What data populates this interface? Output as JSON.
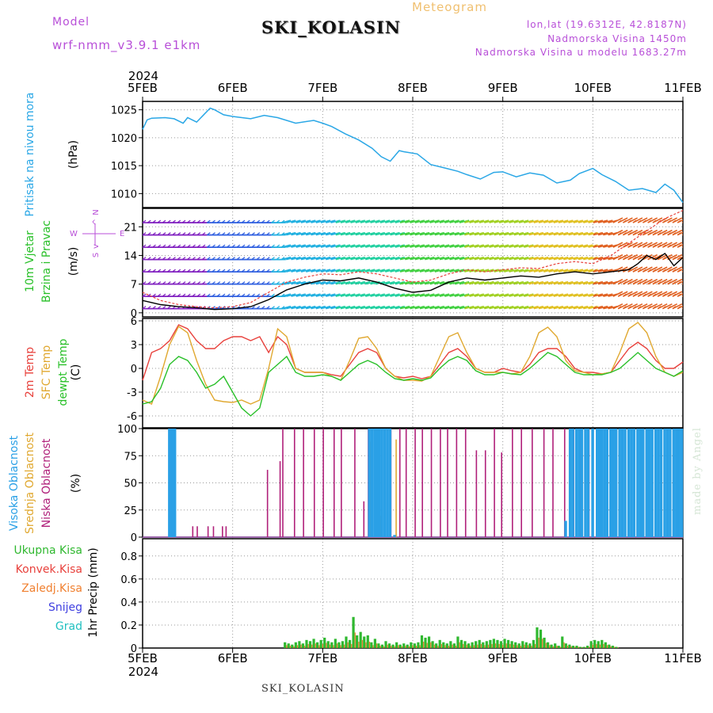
{
  "header": {
    "model_label": "Model",
    "model_name": "wrf-nmm_v3.9.1 e1km",
    "station": "SKI_KOLASIN",
    "chart_kind": "Meteogram",
    "lonlat": "lon,lat (19.6312E, 42.8187N)",
    "elevation": "Nadmorska Visina 1450m",
    "model_elevation": "Nadmorska Visina u modelu 1683.27m"
  },
  "footer": {
    "station": "SKI_KOLASIN",
    "credit": "made by Angel"
  },
  "colors": {
    "pressure": "#2aa7e6",
    "t2m": "#e8413c",
    "tsfc": "#e0a830",
    "dewpt": "#29c029",
    "wind_speed": "#000000",
    "gust": "#e8413c",
    "cloud_high": "#2aa0e6",
    "cloud_mid": "#e0a830",
    "cloud_low": "#b0207a",
    "precip_total": "#2fb82f",
    "precip_conv": "#e8413c",
    "precip_frz": "#f08030",
    "precip_snow": "#4040e0",
    "precip_hail": "#20c0c0"
  },
  "chart_data": [
    {
      "id": "pressure",
      "type": "line",
      "title": "",
      "top_year": "2024",
      "bottom_year": "2024",
      "x_ticks": [
        "5FEB",
        "6FEB",
        "7FEB",
        "8FEB",
        "9FEB",
        "10FEB",
        "11FEB"
      ],
      "ylabel_lines": [
        "Pritisak na nivou mora",
        "(hPa)"
      ],
      "yticks": [
        1010,
        1015,
        1020,
        1025
      ],
      "ylim": [
        1007.5,
        1026.5
      ],
      "series": [
        {
          "color_key": "pressure",
          "x": [
            0,
            0.05,
            0.1,
            0.25,
            0.35,
            0.45,
            0.5,
            0.6,
            0.75,
            0.8,
            0.9,
            1.0,
            1.2,
            1.35,
            1.5,
            1.7,
            1.9,
            2.0,
            2.1,
            2.25,
            2.4,
            2.55,
            2.65,
            2.75,
            2.85,
            2.9,
            3.05,
            3.2,
            3.35,
            3.5,
            3.6,
            3.75,
            3.9,
            4.0,
            4.15,
            4.3,
            4.45,
            4.6,
            4.75,
            4.85,
            5.0,
            5.1,
            5.25,
            5.4,
            5.55,
            5.7,
            5.8,
            5.9,
            6.0
          ],
          "y": [
            1021.5,
            1023.2,
            1023.5,
            1023.6,
            1023.4,
            1022.6,
            1023.6,
            1022.8,
            1025.3,
            1025.0,
            1024.1,
            1023.8,
            1023.4,
            1024.0,
            1023.6,
            1022.6,
            1023.1,
            1022.6,
            1022.0,
            1020.7,
            1019.6,
            1018.1,
            1016.6,
            1015.8,
            1017.7,
            1017.5,
            1017.1,
            1015.2,
            1014.6,
            1014.0,
            1013.4,
            1012.6,
            1013.8,
            1013.9,
            1013.0,
            1013.7,
            1013.3,
            1011.9,
            1012.4,
            1013.6,
            1014.5,
            1013.4,
            1012.2,
            1010.6,
            1010.9,
            1010.2,
            1011.7,
            1010.6,
            1008.4
          ]
        }
      ]
    },
    {
      "id": "wind",
      "type": "line",
      "title": "",
      "ylabel_lines": [
        "10m Vjetar",
        "Brzina i Pravac",
        "(m/s)"
      ],
      "compass": {
        "n": "N",
        "w": "W",
        "e": "E",
        "s": "S",
        "arrow_up": "^",
        "arrow_down": "v"
      },
      "yticks": [
        0,
        7,
        14,
        21
      ],
      "ylim": [
        -1,
        25.5
      ],
      "series": [
        {
          "name": "wind speed",
          "color_key": "wind_speed",
          "x": [
            0,
            0.2,
            0.4,
            0.6,
            0.8,
            1.0,
            1.2,
            1.4,
            1.6,
            1.8,
            2.0,
            2.2,
            2.4,
            2.6,
            2.8,
            3.0,
            3.2,
            3.4,
            3.6,
            3.8,
            4.0,
            4.2,
            4.4,
            4.6,
            4.8,
            5.0,
            5.2,
            5.4,
            5.5,
            5.6,
            5.7,
            5.8,
            5.9,
            6.0
          ],
          "y": [
            3.0,
            2.0,
            1.5,
            1.2,
            0.8,
            1.0,
            1.5,
            3.2,
            5.6,
            7.0,
            8.0,
            7.8,
            8.5,
            7.5,
            6.0,
            5.0,
            5.5,
            7.5,
            8.5,
            8.0,
            8.5,
            9.0,
            8.7,
            9.5,
            10.0,
            9.5,
            10.0,
            10.5,
            12.0,
            14.0,
            13.0,
            14.5,
            11.5,
            13.5
          ]
        },
        {
          "name": "gust",
          "color_key": "gust",
          "x": [
            0,
            0.2,
            0.4,
            0.6,
            0.8,
            1.0,
            1.2,
            1.4,
            1.6,
            1.8,
            2.0,
            2.2,
            2.4,
            2.6,
            2.8,
            3.0,
            3.2,
            3.4,
            3.6,
            3.8,
            4.0,
            4.2,
            4.4,
            4.6,
            4.8,
            5.0,
            5.2,
            5.4,
            5.6,
            5.8,
            6.0
          ],
          "y": [
            5.0,
            3.0,
            2.0,
            1.5,
            1.2,
            1.5,
            2.5,
            5.0,
            7.5,
            8.7,
            9.5,
            9.3,
            10.0,
            9.5,
            8.5,
            7.5,
            8.0,
            9.5,
            10.5,
            10.0,
            10.5,
            11.0,
            10.8,
            12.0,
            12.5,
            12.0,
            14.0,
            17.0,
            20.0,
            23.0,
            25.0
          ]
        }
      ]
    },
    {
      "id": "temperature",
      "type": "line",
      "title": "",
      "ylabel_lines": [
        "2m Temp",
        "SFC Temp",
        "dewpt Temp",
        "(C)"
      ],
      "yticks": [
        -6,
        -3,
        0,
        3,
        6
      ],
      "ylim": [
        -7.5,
        6.3
      ],
      "series": [
        {
          "name": "2m Temp",
          "color_key": "t2m",
          "x": [
            0,
            0.1,
            0.2,
            0.3,
            0.4,
            0.5,
            0.6,
            0.7,
            0.8,
            0.9,
            1.0,
            1.1,
            1.2,
            1.3,
            1.4,
            1.5,
            1.6,
            1.7,
            1.8,
            1.9,
            2.0,
            2.1,
            2.2,
            2.3,
            2.4,
            2.5,
            2.6,
            2.7,
            2.8,
            2.9,
            3.0,
            3.1,
            3.2,
            3.3,
            3.4,
            3.5,
            3.6,
            3.7,
            3.8,
            3.9,
            4.0,
            4.1,
            4.2,
            4.3,
            4.4,
            4.5,
            4.6,
            4.7,
            4.8,
            4.9,
            5.0,
            5.1,
            5.2,
            5.3,
            5.4,
            5.5,
            5.6,
            5.7,
            5.8,
            5.9,
            6.0
          ],
          "y": [
            -1.5,
            2.0,
            2.5,
            3.5,
            5.5,
            5.0,
            3.5,
            2.5,
            2.5,
            3.5,
            4.0,
            4.0,
            3.5,
            4.0,
            2.0,
            4.0,
            3.0,
            0.0,
            -0.5,
            -0.5,
            -0.5,
            -0.8,
            -1.0,
            0.5,
            2.0,
            2.5,
            2.0,
            0.0,
            -1.0,
            -1.2,
            -1.0,
            -1.3,
            -1.0,
            0.5,
            2.0,
            2.5,
            1.5,
            0.0,
            -0.5,
            -0.5,
            0.0,
            -0.3,
            -0.5,
            0.5,
            2.0,
            2.5,
            2.5,
            1.5,
            0.0,
            -0.5,
            -0.5,
            -0.7,
            -0.5,
            1.0,
            2.5,
            3.3,
            2.5,
            1.0,
            0.0,
            0.0,
            0.8
          ]
        },
        {
          "name": "SFC Temp",
          "color_key": "tsfc",
          "x": [
            0,
            0.1,
            0.2,
            0.3,
            0.4,
            0.5,
            0.6,
            0.7,
            0.8,
            0.9,
            1.0,
            1.1,
            1.2,
            1.3,
            1.4,
            1.5,
            1.6,
            1.7,
            1.8,
            1.9,
            2.0,
            2.1,
            2.2,
            2.3,
            2.4,
            2.5,
            2.6,
            2.7,
            2.8,
            2.9,
            3.0,
            3.1,
            3.2,
            3.3,
            3.4,
            3.5,
            3.6,
            3.7,
            3.8,
            3.9,
            4.0,
            4.1,
            4.2,
            4.3,
            4.4,
            4.5,
            4.6,
            4.7,
            4.8,
            4.9,
            5.0,
            5.1,
            5.2,
            5.3,
            5.4,
            5.5,
            5.6,
            5.7,
            5.8,
            5.9,
            6.0
          ],
          "y": [
            -4.0,
            -4.5,
            -1.0,
            3.0,
            5.3,
            4.5,
            1.0,
            -2.0,
            -4.0,
            -4.2,
            -4.3,
            -4.0,
            -4.5,
            -4.0,
            0.0,
            5.0,
            4.0,
            0.0,
            -0.5,
            -0.5,
            -0.5,
            -1.0,
            -1.5,
            1.0,
            3.8,
            4.0,
            2.5,
            0.0,
            -1.0,
            -1.5,
            -1.5,
            -1.6,
            -1.0,
            1.5,
            4.0,
            4.5,
            2.0,
            0.0,
            -0.5,
            -0.5,
            -0.5,
            -0.7,
            -0.5,
            1.5,
            4.5,
            5.2,
            4.0,
            1.0,
            -0.3,
            -0.5,
            -0.8,
            -0.7,
            -0.5,
            2.0,
            5.0,
            5.8,
            4.5,
            1.5,
            -0.5,
            -1.0,
            -0.5
          ]
        },
        {
          "name": "dewpt Temp",
          "color_key": "dewpt",
          "x": [
            0,
            0.1,
            0.2,
            0.3,
            0.4,
            0.5,
            0.6,
            0.7,
            0.8,
            0.9,
            1.0,
            1.1,
            1.2,
            1.3,
            1.4,
            1.5,
            1.6,
            1.7,
            1.8,
            1.9,
            2.0,
            2.1,
            2.2,
            2.3,
            2.4,
            2.5,
            2.6,
            2.7,
            2.8,
            2.9,
            3.0,
            3.1,
            3.2,
            3.3,
            3.4,
            3.5,
            3.6,
            3.7,
            3.8,
            3.9,
            4.0,
            4.1,
            4.2,
            4.3,
            4.4,
            4.5,
            4.6,
            4.7,
            4.8,
            4.9,
            5.0,
            5.1,
            5.2,
            5.3,
            5.4,
            5.5,
            5.6,
            5.7,
            5.8,
            5.9,
            6.0
          ],
          "y": [
            -4.5,
            -4.2,
            -2.5,
            0.5,
            1.5,
            1.0,
            -0.5,
            -2.5,
            -2.0,
            -1.0,
            -3.0,
            -5.0,
            -6.0,
            -5.0,
            -0.5,
            0.5,
            1.5,
            -0.5,
            -1.0,
            -1.0,
            -0.8,
            -1.0,
            -1.5,
            -0.5,
            0.5,
            1.0,
            0.5,
            -0.5,
            -1.3,
            -1.5,
            -1.3,
            -1.5,
            -1.2,
            0.0,
            1.0,
            1.5,
            1.0,
            -0.3,
            -0.8,
            -0.8,
            -0.5,
            -0.7,
            -0.8,
            0.0,
            1.0,
            2.0,
            1.5,
            0.5,
            -0.5,
            -0.8,
            -0.8,
            -0.8,
            -0.5,
            0.0,
            1.0,
            2.0,
            1.0,
            0.0,
            -0.5,
            -1.0,
            -0.3
          ]
        }
      ]
    },
    {
      "id": "clouds",
      "type": "bar",
      "title": "",
      "ylabel_lines": [
        "Visoka Oblacnost",
        "Srednja Oblacnost",
        "Niska Oblacnost",
        "(%)"
      ],
      "yticks": [
        0,
        25,
        50,
        75,
        100
      ],
      "ylim": [
        0,
        100
      ],
      "high_x": [
        0.3,
        0.33,
        0.36,
        2.52,
        2.55,
        2.58,
        2.6,
        2.63,
        2.66,
        2.69,
        2.72,
        2.75,
        2.8,
        4.7,
        4.75,
        4.78,
        4.82,
        4.85,
        4.88,
        4.92,
        4.95,
        5.0,
        5.05,
        5.08,
        5.1,
        5.13,
        5.16,
        5.2,
        5.23,
        5.26,
        5.3,
        5.33,
        5.36,
        5.4,
        5.43,
        5.46,
        5.5,
        5.53,
        5.56,
        5.6,
        5.63,
        5.66,
        5.7,
        5.73,
        5.76,
        5.8,
        5.83,
        5.86,
        5.9,
        5.93,
        5.96,
        5.99
      ],
      "high_y": [
        100,
        100,
        100,
        100,
        100,
        100,
        100,
        100,
        100,
        100,
        100,
        100,
        2,
        15,
        100,
        100,
        100,
        100,
        100,
        100,
        100,
        100,
        100,
        100,
        100,
        100,
        100,
        100,
        100,
        100,
        100,
        100,
        100,
        100,
        100,
        100,
        100,
        100,
        100,
        100,
        100,
        100,
        100,
        100,
        100,
        100,
        100,
        100,
        100,
        100,
        100,
        100
      ],
      "mid_x": [
        2.52,
        2.56,
        2.62,
        2.7,
        2.8
      ],
      "mid_y": [
        88,
        100,
        20,
        55,
        90
      ],
      "low_x": [
        0.55,
        0.6,
        0.72,
        0.78,
        0.88,
        0.92,
        1.38,
        1.52,
        1.55,
        1.68,
        1.78,
        1.9,
        2.0,
        2.12,
        2.2,
        2.35,
        2.45,
        2.5,
        2.62,
        2.68,
        2.75,
        2.85,
        2.92,
        3.02,
        3.1,
        3.2,
        3.3,
        3.38,
        3.48,
        3.58,
        3.7,
        3.8,
        3.9,
        3.98,
        4.1,
        4.2,
        4.32,
        4.45,
        4.55,
        4.68,
        4.78,
        4.85,
        4.95,
        5.05,
        5.15
      ],
      "low_y": [
        10,
        10,
        10,
        10,
        10,
        10,
        62,
        70,
        100,
        100,
        100,
        100,
        100,
        100,
        100,
        100,
        33,
        100,
        100,
        100,
        100,
        100,
        100,
        100,
        100,
        100,
        100,
        100,
        100,
        100,
        80,
        80,
        100,
        78,
        100,
        100,
        100,
        100,
        100,
        100,
        100,
        100,
        100,
        88,
        100
      ]
    },
    {
      "id": "precip",
      "type": "bar",
      "title": "",
      "ylabel_lines": [
        "1hr Precip (mm)"
      ],
      "legend": [
        "Ukupna Kisa",
        "Konvek.Kisa",
        "Zaledj.Kisa",
        "Snijeg",
        "Grad"
      ],
      "yticks": [
        0,
        0.2,
        0.4,
        0.6,
        0.8
      ],
      "ylim": [
        0,
        0.95
      ],
      "x": [
        1.58,
        1.62,
        1.66,
        1.7,
        1.74,
        1.78,
        1.82,
        1.86,
        1.9,
        1.94,
        1.98,
        2.02,
        2.06,
        2.1,
        2.14,
        2.18,
        2.22,
        2.26,
        2.3,
        2.34,
        2.38,
        2.42,
        2.46,
        2.5,
        2.54,
        2.58,
        2.62,
        2.66,
        2.7,
        2.74,
        2.78,
        2.82,
        2.86,
        2.9,
        2.94,
        2.98,
        3.02,
        3.06,
        3.1,
        3.14,
        3.18,
        3.22,
        3.26,
        3.3,
        3.34,
        3.38,
        3.42,
        3.46,
        3.5,
        3.54,
        3.58,
        3.62,
        3.66,
        3.7,
        3.74,
        3.78,
        3.82,
        3.86,
        3.9,
        3.94,
        3.98,
        4.02,
        4.06,
        4.1,
        4.14,
        4.18,
        4.22,
        4.26,
        4.3,
        4.34,
        4.38,
        4.42,
        4.46,
        4.5,
        4.54,
        4.58,
        4.62,
        4.66,
        4.7,
        4.74,
        4.78,
        4.82,
        4.86,
        4.9,
        4.94,
        4.98,
        5.02,
        5.06,
        5.1,
        5.14,
        5.18,
        5.22,
        5.26
      ],
      "values": [
        0.05,
        0.04,
        0.03,
        0.05,
        0.06,
        0.04,
        0.07,
        0.06,
        0.08,
        0.05,
        0.07,
        0.09,
        0.06,
        0.05,
        0.08,
        0.05,
        0.06,
        0.1,
        0.07,
        0.27,
        0.11,
        0.14,
        0.1,
        0.11,
        0.05,
        0.08,
        0.04,
        0.03,
        0.06,
        0.04,
        0.03,
        0.05,
        0.03,
        0.04,
        0.03,
        0.05,
        0.04,
        0.05,
        0.11,
        0.09,
        0.1,
        0.06,
        0.04,
        0.07,
        0.05,
        0.04,
        0.06,
        0.04,
        0.1,
        0.07,
        0.06,
        0.04,
        0.05,
        0.06,
        0.07,
        0.05,
        0.06,
        0.07,
        0.08,
        0.07,
        0.06,
        0.08,
        0.07,
        0.06,
        0.05,
        0.04,
        0.06,
        0.05,
        0.04,
        0.07,
        0.18,
        0.16,
        0.09,
        0.05,
        0.03,
        0.04,
        0.02,
        0.1,
        0.04,
        0.03,
        0.02,
        0.02,
        0.01,
        0.01,
        0.02,
        0.06,
        0.07,
        0.06,
        0.07,
        0.05,
        0.03,
        0.02,
        0.01
      ]
    }
  ]
}
